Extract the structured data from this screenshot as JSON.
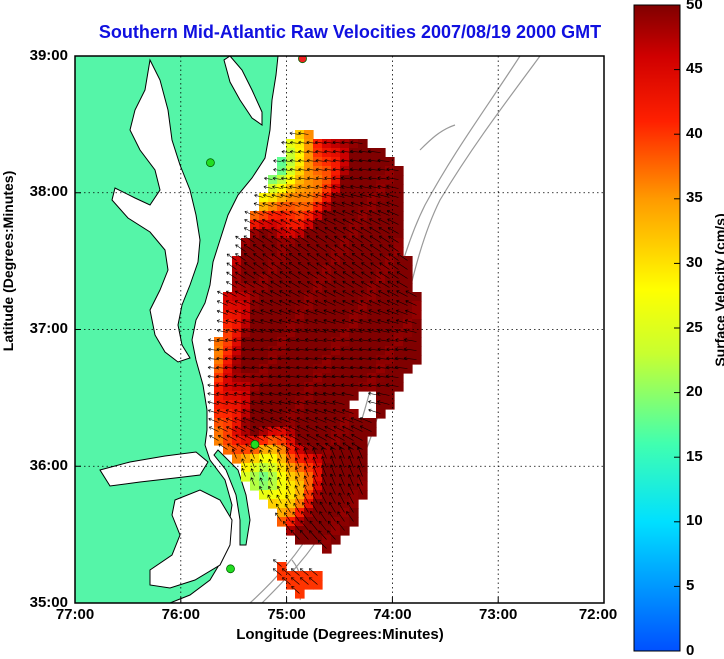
{
  "title": "Southern Mid-Atlantic Raw Velocities 2007/08/19 2000 GMT",
  "xlabel": "Longitude (Degrees:Minutes)",
  "ylabel": "Latitude (Degrees:Minutes)",
  "x_ticks": [
    "77:00",
    "76:00",
    "75:00",
    "74:00",
    "73:00",
    "72:00"
  ],
  "y_ticks": [
    "39:00",
    "38:00",
    "37:00",
    "36:00",
    "35:00"
  ],
  "colorbar": {
    "label": "Surface Velocity (cm/s)",
    "ticks": [
      "0",
      "5",
      "10",
      "15",
      "20",
      "25",
      "30",
      "35",
      "40",
      "45",
      "50"
    ],
    "range": [
      0,
      50
    ]
  },
  "colors": {
    "title": "#1010e0",
    "land": "#55f5a8",
    "coast": "#000000",
    "bathymetry": "#999999",
    "grid": "#000000",
    "station": "#22dd22",
    "station_alt": "#ee2222"
  },
  "chart_data": {
    "type": "heatmap",
    "title": "Southern Mid-Atlantic Raw Velocities 2007/08/19 2000 GMT",
    "xlabel": "Longitude (Degrees:Minutes)",
    "ylabel": "Latitude (Degrees:Minutes)",
    "xlim": [
      -77,
      -72
    ],
    "ylim": [
      35,
      39
    ],
    "field": "surface current speed (cm/s) with direction vectors",
    "colorbar_range": [
      0,
      50
    ],
    "stations": [
      {
        "lon": -74.85,
        "lat": 38.98,
        "color": "red"
      },
      {
        "lon": -75.72,
        "lat": 38.22,
        "color": "green"
      },
      {
        "lon": -75.3,
        "lat": 36.16,
        "color": "green"
      },
      {
        "lon": -75.53,
        "lat": 35.25,
        "color": "green"
      }
    ]
  }
}
